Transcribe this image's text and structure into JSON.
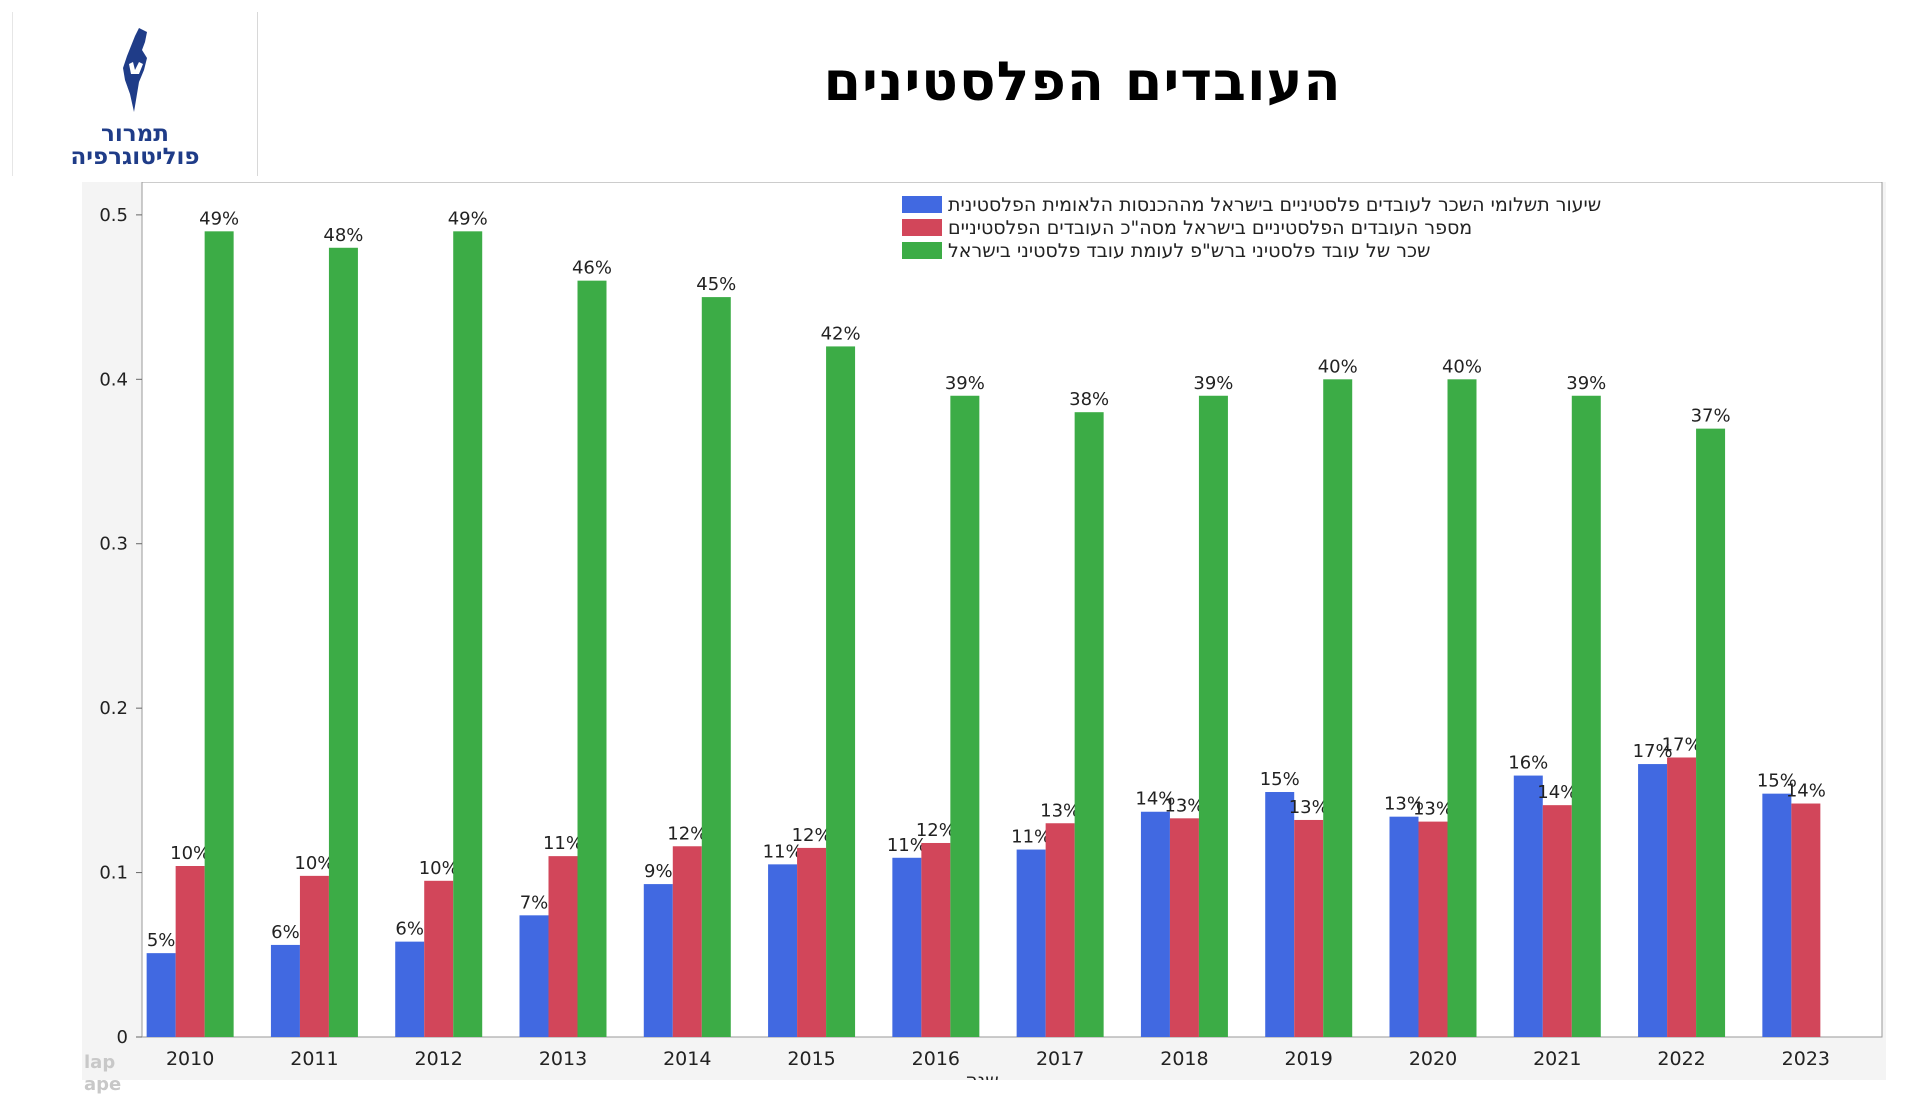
{
  "logo": {
    "line1": "תמרור",
    "line2": "פוליטוגרפיה",
    "color": "#1f3c88"
  },
  "title": "העובדים הפלסטינים",
  "colors": {
    "blue": "#4169e1",
    "red": "#d2465a",
    "green": "#3cac46"
  },
  "chart_data": {
    "type": "bar",
    "title": "",
    "xlabel": "שנה",
    "ylabel": "",
    "ylim": [
      0,
      0.52
    ],
    "yticks": [
      "0",
      "0.1",
      "0.2",
      "0.3",
      "0.4",
      "0.5"
    ],
    "legend_position": "top-right",
    "categories": [
      "2010",
      "2011",
      "2012",
      "2013",
      "2014",
      "2015",
      "2016",
      "2017",
      "2018",
      "2019",
      "2020",
      "2021",
      "2022",
      "2023"
    ],
    "series": [
      {
        "name": "שיעור תשלומי השכר לעובדים פלסטיניים בישראל מההכנסות הלאומית הפלסטינית",
        "color": "#4169e1",
        "values": [
          0.051,
          0.056,
          0.058,
          0.074,
          0.093,
          0.105,
          0.109,
          0.114,
          0.137,
          0.149,
          0.134,
          0.159,
          0.166,
          0.148
        ],
        "labels": [
          "5%",
          "6%",
          "6%",
          "7%",
          "9%",
          "11%",
          "11%",
          "11%",
          "14%",
          "15%",
          "13%",
          "16%",
          "17%",
          "15%"
        ]
      },
      {
        "name": "מספר העובדים הפלסטיניים בישראל מסה\"כ העובדים הפלסטיניים",
        "color": "#d2465a",
        "values": [
          0.104,
          0.098,
          0.095,
          0.11,
          0.116,
          0.115,
          0.118,
          0.13,
          0.133,
          0.132,
          0.131,
          0.141,
          0.17,
          0.142
        ],
        "labels": [
          "10%",
          "10%",
          "10%",
          "11%",
          "12%",
          "12%",
          "12%",
          "13%",
          "13%",
          "13%",
          "13%",
          "14%",
          "17%",
          "14%"
        ]
      },
      {
        "name": "שכר של עובד פלסטיני ברש\"פ לעומת עובד פלסטיני בישראל",
        "color": "#3cac46",
        "values": [
          0.49,
          0.48,
          0.49,
          0.46,
          0.45,
          0.42,
          0.39,
          0.38,
          0.39,
          0.4,
          0.4,
          0.39,
          0.37,
          null
        ],
        "labels": [
          "49%",
          "48%",
          "49%",
          "46%",
          "45%",
          "42%",
          "39%",
          "38%",
          "39%",
          "40%",
          "40%",
          "39%",
          "37%",
          ""
        ]
      }
    ]
  },
  "watermark": {
    "line1": "lap",
    "line2": "ape"
  }
}
